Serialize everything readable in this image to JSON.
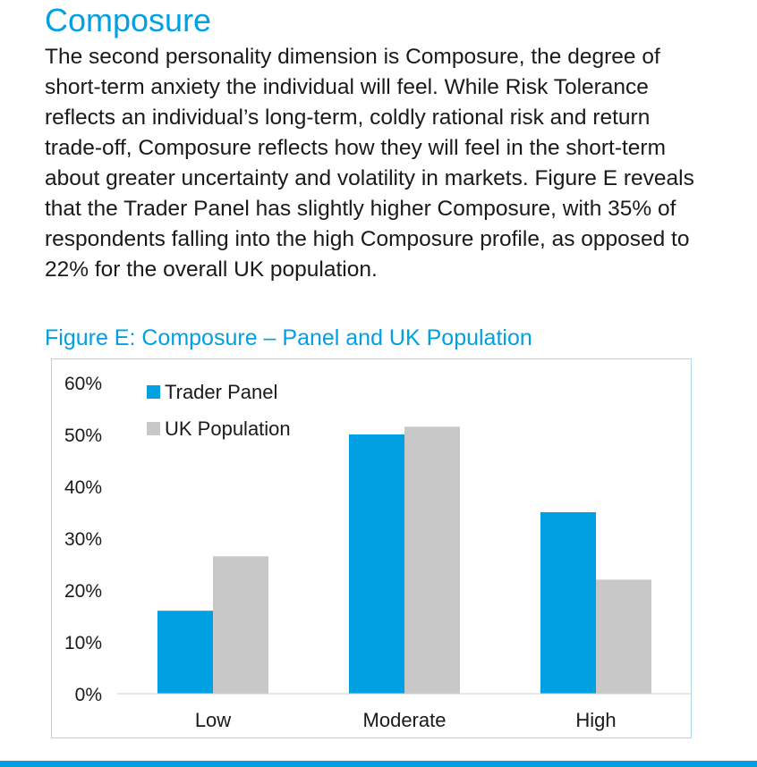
{
  "section": {
    "title": "Composure",
    "body": "The second personality dimension is Composure, the degree of short-term anxiety the individual will feel. While Risk Tolerance reflects an individual’s long-term, coldly rational risk and return trade-off, Composure reflects how they will feel in the short-term about greater uncertainty and volatility in markets. Figure E reveals that the Trader Panel has slightly higher Composure, with 35% of respondents falling into the high Composure profile, as opposed to 22% for the overall UK population."
  },
  "figure": {
    "title": "Figure E: Composure – Panel and UK Population"
  },
  "colors": {
    "accent": "#00a0e3",
    "trader_panel": "#00a0e3",
    "uk_population": "#c8c8c8",
    "frame": "#a8d8ee"
  },
  "chart_data": {
    "type": "bar",
    "categories": [
      "Low",
      "Moderate",
      "High"
    ],
    "series": [
      {
        "name": "Trader Panel",
        "values": [
          16,
          50,
          35
        ]
      },
      {
        "name": "UK Population",
        "values": [
          26.5,
          51.5,
          22
        ]
      }
    ],
    "yticks": [
      "0%",
      "10%",
      "20%",
      "30%",
      "40%",
      "50%",
      "60%"
    ],
    "ylim": [
      0,
      60
    ],
    "legend_position": "top-left",
    "grid": false
  }
}
